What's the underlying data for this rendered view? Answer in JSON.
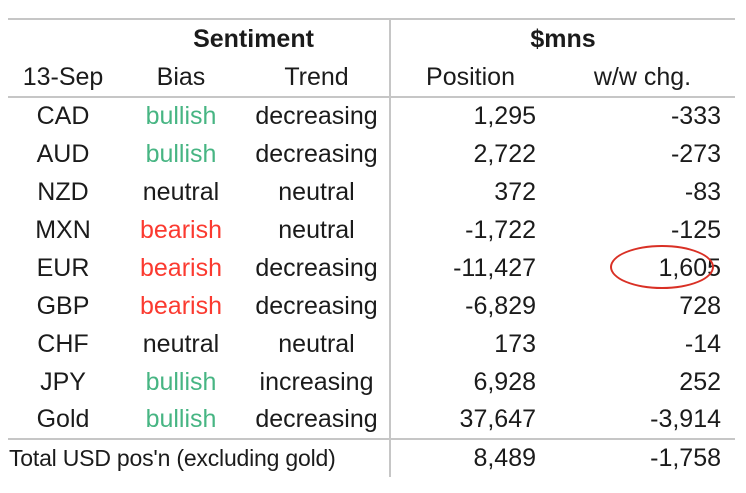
{
  "table": {
    "date_label": "13-Sep",
    "group_headers": {
      "sentiment": "Sentiment",
      "mns": "$mns"
    },
    "column_headers": {
      "bias": "Bias",
      "trend": "Trend",
      "position": "Position",
      "ww_chg": "w/w chg."
    },
    "rows": [
      {
        "asset": "CAD",
        "bias": "bullish",
        "trend": "decreasing",
        "position": "1,295",
        "ww_chg": "-333",
        "highlighted": false
      },
      {
        "asset": "AUD",
        "bias": "bullish",
        "trend": "decreasing",
        "position": "2,722",
        "ww_chg": "-273",
        "highlighted": false
      },
      {
        "asset": "NZD",
        "bias": "neutral",
        "trend": "neutral",
        "position": "372",
        "ww_chg": "-83",
        "highlighted": false
      },
      {
        "asset": "MXN",
        "bias": "bearish",
        "trend": "neutral",
        "position": "-1,722",
        "ww_chg": "-125",
        "highlighted": false
      },
      {
        "asset": "EUR",
        "bias": "bearish",
        "trend": "decreasing",
        "position": "-11,427",
        "ww_chg": "1,605",
        "highlighted": true
      },
      {
        "asset": "GBP",
        "bias": "bearish",
        "trend": "decreasing",
        "position": "-6,829",
        "ww_chg": "728",
        "highlighted": false
      },
      {
        "asset": "CHF",
        "bias": "neutral",
        "trend": "neutral",
        "position": "173",
        "ww_chg": "-14",
        "highlighted": false
      },
      {
        "asset": "JPY",
        "bias": "bullish",
        "trend": "increasing",
        "position": "6,928",
        "ww_chg": "252",
        "highlighted": false
      },
      {
        "asset": "Gold",
        "bias": "bullish",
        "trend": "decreasing",
        "position": "37,647",
        "ww_chg": "-3,914",
        "highlighted": false
      }
    ],
    "total": {
      "label": "Total USD pos'n (excluding gold)",
      "position": "8,489",
      "ww_chg": "-1,758"
    }
  },
  "annotation": {
    "shape": "ellipse",
    "target_row": "EUR",
    "target_column": "w/w chg.",
    "circled_value": "1,605"
  },
  "colors": {
    "text": "#1b1b1b",
    "line": "#c6c6c6",
    "bullish": "#47b583",
    "bearish": "#fb3a30",
    "annotation": "#d93025"
  }
}
